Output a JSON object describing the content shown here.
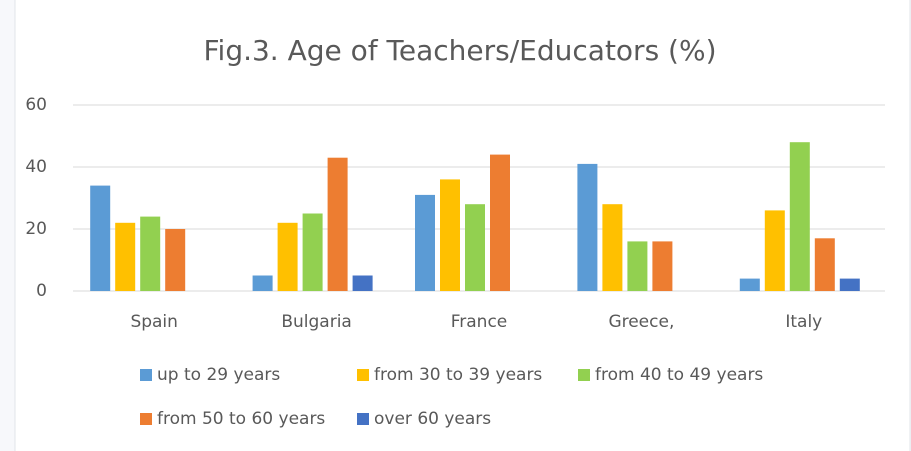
{
  "chart_data": {
    "type": "bar",
    "title": "Fig.3. Age of Teachers/Educators (%)",
    "categories": [
      "Spain",
      "Bulgaria",
      "France",
      "Greece,",
      "Italy"
    ],
    "series": [
      {
        "name": "up to 29 years",
        "color": "#5b9bd5",
        "values": [
          34,
          5,
          31,
          41,
          4
        ]
      },
      {
        "name": "from 30 to 39 years",
        "color": "#ffc000",
        "values": [
          22,
          22,
          36,
          28,
          26
        ]
      },
      {
        "name": "from 40 to 49 years",
        "color": "#92d050",
        "values": [
          24,
          25,
          28,
          16,
          48
        ]
      },
      {
        "name": "from 50 to 60 years",
        "color": "#ed7d31",
        "values": [
          20,
          43,
          44,
          16,
          17
        ]
      },
      {
        "name": "over 60 years",
        "color": "#4472c4",
        "values": [
          null,
          5,
          null,
          null,
          4
        ]
      }
    ],
    "ylim": [
      0,
      60
    ],
    "yticks": [
      0,
      20,
      40,
      60
    ],
    "grid": true,
    "legend": "bottom"
  }
}
